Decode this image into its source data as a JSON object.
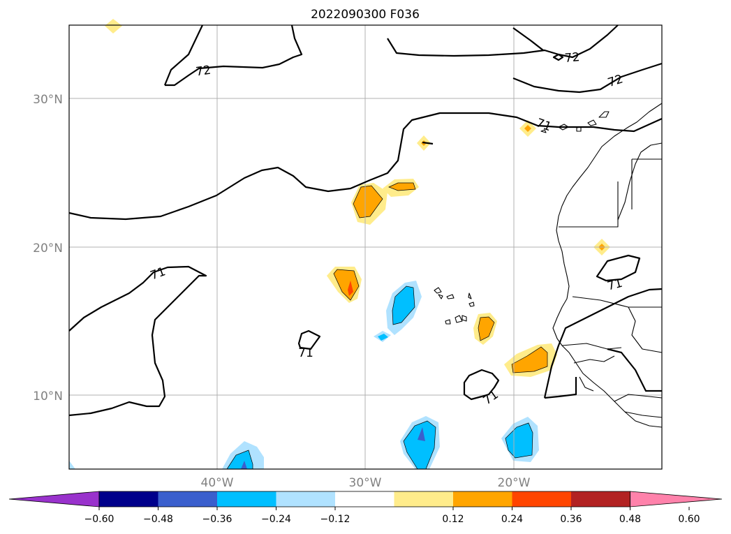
{
  "title": "2022090300 F036",
  "map": {
    "lat_labels": [
      "30°N",
      "20°N",
      "10°N"
    ],
    "lon_labels": [
      "40°W",
      "30°W",
      "20°W"
    ],
    "contour_labels": [
      "72",
      "72",
      "72",
      "71",
      "71",
      "71",
      "71",
      "71"
    ]
  },
  "colorbar": {
    "ticks": [
      "−0.60",
      "−0.48",
      "−0.36",
      "−0.24",
      "−0.12",
      "0.12",
      "0.24",
      "0.36",
      "0.48",
      "0.60"
    ],
    "colors": [
      "#9932cc",
      "#00008b",
      "#3a5fcd",
      "#00bfff",
      "#b0e2ff",
      "#ffffff",
      "#ffec8b",
      "#ffa500",
      "#ff4500",
      "#b22222",
      "#ff82ab"
    ]
  }
}
